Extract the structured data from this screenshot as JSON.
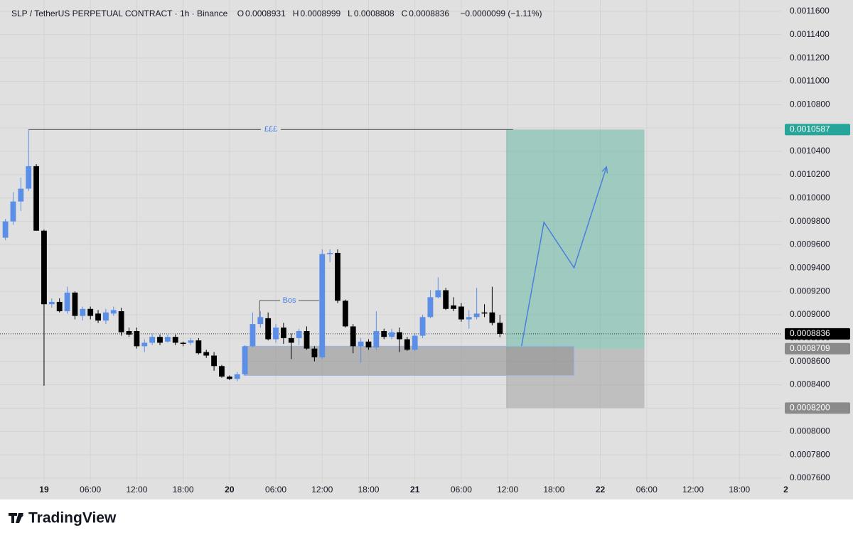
{
  "chart_data": {
    "type": "candlestick",
    "title": "SLP / TetherUS PERPETUAL CONTRACT · 1h · Binance",
    "header_values": [
      {
        "label": "O",
        "value": 0.0008931
      },
      {
        "label": "H",
        "value": 0.0008999
      },
      {
        "label": "L",
        "value": 0.0008808
      },
      {
        "label": "C",
        "value": 0.0008836
      }
    ],
    "change": "−0.0000099 (−1.11%)",
    "x": [
      -5,
      -4,
      -3,
      -2,
      -1,
      0,
      1,
      2,
      3,
      4,
      5,
      6,
      7,
      8,
      9,
      10,
      11,
      12,
      13,
      14,
      15,
      16,
      17,
      18,
      19,
      20,
      21,
      22,
      23,
      24,
      25,
      26,
      27,
      28,
      29,
      30,
      31,
      32,
      33,
      34,
      35,
      36,
      37,
      38,
      39,
      40,
      41,
      42,
      43,
      44,
      45,
      46,
      47,
      48,
      49,
      50,
      51,
      52,
      53,
      54,
      55,
      56,
      57,
      58,
      59
    ],
    "open": [
      0.000966,
      0.00098,
      0.000997,
      0.001008,
      0.0010273,
      0.000972,
      0.000909,
      0.000911,
      0.000903,
      0.000919,
      0.000899,
      0.000905,
      0.000901,
      0.000895,
      0.000901,
      0.000903,
      0.000886,
      0.000886,
      0.000873,
      0.000876,
      0.000881,
      0.000877,
      0.000881,
      0.000876,
      0.000876,
      0.000878,
      0.000868,
      0.000865,
      0.000856,
      0.000847,
      0.000845,
      0.000849,
      0.000873,
      0.000892,
      0.000897,
      0.000879,
      0.000889,
      0.00088,
      0.00088,
      0.000886,
      0.000871,
      0.0008635,
      0.000952,
      0.000953,
      0.000912,
      0.00089,
      0.000873,
      0.000877,
      0.000872,
      0.000886,
      0.000881,
      0.000885,
      0.000879,
      0.00087,
      0.000882,
      0.000898,
      0.000915,
      0.000921,
      0.000908,
      0.000907,
      0.000896,
      0.000898,
      0.000902,
      0.000902,
      0.0008931
    ],
    "high": [
      0.000982,
      0.001005,
      0.0010175,
      0.0010587,
      0.001029,
      0.000973,
      0.000914,
      0.000914,
      0.000924,
      0.00092,
      0.000907,
      0.000907,
      0.000904,
      0.000905,
      0.000907,
      0.000906,
      0.000889,
      0.000889,
      0.000879,
      0.000884,
      0.000883,
      0.000883,
      0.000883,
      0.000877,
      0.00088,
      0.00088,
      0.00087,
      0.000868,
      0.000857,
      0.000848,
      0.000851,
      0.000874,
      0.000902,
      0.000903,
      0.000902,
      0.000892,
      0.000893,
      0.000884,
      0.000888,
      0.00089,
      0.000873,
      0.0009561,
      0.000956,
      0.000956,
      0.000913,
      0.000892,
      0.00088,
      0.000879,
      0.000903,
      0.000888,
      0.000888,
      0.000889,
      0.000881,
      0.000884,
      0.0009,
      0.000921,
      0.000932,
      0.000923,
      0.000915,
      0.00091,
      0.000904,
      0.000923,
      0.000909,
      0.000924,
      0.0008999
    ],
    "low": [
      0.000964,
      0.000977,
      0.000989,
      0.001006,
      0.000972,
      0.0008392,
      0.000906,
      0.000902,
      0.000901,
      0.000896,
      0.000895,
      0.000896,
      0.000893,
      0.000892,
      0.000899,
      0.000882,
      0.000881,
      0.000871,
      0.000868,
      0.000874,
      0.000874,
      0.000876,
      0.000874,
      0.000873,
      0.000874,
      0.000866,
      0.000863,
      0.000852,
      0.000846,
      0.000844,
      0.000843,
      0.000848,
      0.000872,
      0.000889,
      0.000878,
      0.000876,
      0.000875,
      0.000862,
      0.000874,
      0.00087,
      0.00086,
      0.000862,
      0.000945,
      0.00091,
      0.000889,
      0.000867,
      0.000859,
      0.00087,
      0.00087,
      0.000879,
      0.000879,
      0.000868,
      0.000869,
      0.000869,
      0.00088,
      0.000897,
      0.000914,
      0.000904,
      0.000903,
      0.000894,
      0.000888,
      0.000896,
      0.000898,
      0.000891,
      0.0008808
    ],
    "close": [
      0.00098,
      0.000997,
      0.001008,
      0.0010273,
      0.000972,
      0.000909,
      0.000911,
      0.000903,
      0.000919,
      0.000899,
      0.000905,
      0.000899,
      0.000895,
      0.000902,
      0.000904,
      0.000885,
      0.000883,
      0.000873,
      0.000876,
      0.000881,
      0.000876,
      0.000881,
      0.000876,
      0.000875,
      0.000878,
      0.000867,
      0.000865,
      0.000856,
      0.000847,
      0.000845,
      0.000849,
      0.000873,
      0.000892,
      0.000898,
      0.000879,
      0.000889,
      0.00088,
      0.000876,
      0.000886,
      0.000871,
      0.0008635,
      0.000952,
      0.000953,
      0.000912,
      0.00089,
      0.000873,
      0.000877,
      0.000872,
      0.000886,
      0.000881,
      0.000885,
      0.000879,
      0.00087,
      0.000882,
      0.000898,
      0.000915,
      0.000921,
      0.000905,
      0.000905,
      0.000896,
      0.000898,
      0.000901,
      0.000901,
      0.000893,
      0.0008836
    ],
    "up_color": "#5b8ee6",
    "down_color": "#000000",
    "xlim": [
      -5.7,
      95.5
    ],
    "xticks": [
      {
        "value": 0,
        "label": "19"
      },
      {
        "value": 6,
        "label": "06:00"
      },
      {
        "value": 12,
        "label": "12:00"
      },
      {
        "value": 18,
        "label": "18:00"
      },
      {
        "value": 24,
        "label": "20"
      },
      {
        "value": 30,
        "label": "06:00"
      },
      {
        "value": 36,
        "label": "12:00"
      },
      {
        "value": 42,
        "label": "18:00"
      },
      {
        "value": 48,
        "label": "21"
      },
      {
        "value": 54,
        "label": "06:00"
      },
      {
        "value": 60,
        "label": "12:00"
      },
      {
        "value": 66,
        "label": "18:00"
      },
      {
        "value": 72,
        "label": "22"
      },
      {
        "value": 78,
        "label": "06:00"
      },
      {
        "value": 84,
        "label": "12:00"
      },
      {
        "value": 90,
        "label": "18:00"
      },
      {
        "value": 96,
        "label": "2"
      }
    ],
    "ylim": [
      0.0007557,
      0.0011697
    ],
    "yticks": [
      {
        "value": 0.00076,
        "label": "0.0007600"
      },
      {
        "value": 0.00078,
        "label": "0.0007800"
      },
      {
        "value": 0.0008,
        "label": "0.0008000"
      },
      {
        "value": 0.00082,
        "label": "0.0008200"
      },
      {
        "value": 0.00084,
        "label": "0.0008400"
      },
      {
        "value": 0.00086,
        "label": "0.0008600"
      },
      {
        "value": 0.00088,
        "label": "0.0008800"
      },
      {
        "value": 0.0009,
        "label": "0.0009000"
      },
      {
        "value": 0.00092,
        "label": "0.0009200"
      },
      {
        "value": 0.00094,
        "label": "0.0009400"
      },
      {
        "value": 0.00096,
        "label": "0.0009600"
      },
      {
        "value": 0.00098,
        "label": "0.0009800"
      },
      {
        "value": 0.001,
        "label": "0.0010000"
      },
      {
        "value": 0.00102,
        "label": "0.0010200"
      },
      {
        "value": 0.00104,
        "label": "0.0010400"
      },
      {
        "value": 0.00106,
        "label": "0.0010600"
      },
      {
        "value": 0.00108,
        "label": "0.0010800"
      },
      {
        "value": 0.0011,
        "label": "0.0011000"
      },
      {
        "value": 0.00112,
        "label": "0.0011200"
      },
      {
        "value": 0.00114,
        "label": "0.0011400"
      },
      {
        "value": 0.00116,
        "label": "0.0011600"
      }
    ],
    "grid": true,
    "liquidity": {
      "label": "£££",
      "price": 0.0010587,
      "x": [
        -2,
        60.7
      ]
    },
    "bos": {
      "label": "Bos",
      "price": 0.0009122,
      "x": [
        27.9,
        35.6
      ]
    },
    "zone": {
      "top": 0.000873,
      "bottom": 0.000848,
      "x": [
        25.9,
        68.6
      ]
    },
    "position": {
      "target": 0.0010587,
      "entry": 0.0008709,
      "stop": 0.00082,
      "stop_label": "0.0008200",
      "x": [
        59.8,
        77.7
      ]
    },
    "drawing": {
      "x": [
        61.8,
        64.7,
        68.6,
        72.8
      ],
      "y": [
        0.0008733,
        0.0009792,
        0.0009402,
        0.0010267
      ],
      "color": "#4a7fe0"
    }
  },
  "footer": {
    "brand": "TradingView"
  }
}
